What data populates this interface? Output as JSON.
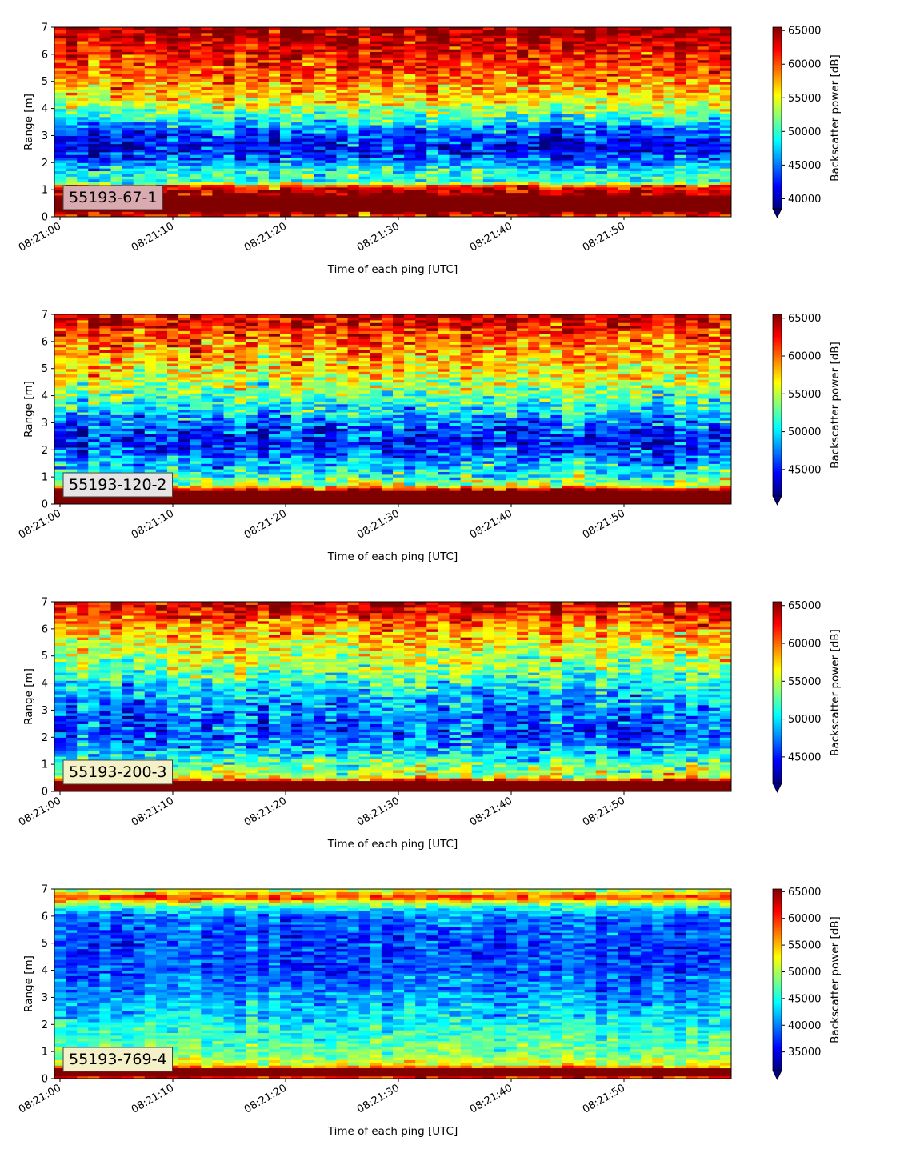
{
  "chart_data": [
    {
      "type": "heatmap",
      "label": "55193-67-1",
      "label_bg": "#d9aab0",
      "xlabel": "Time of each ping [UTC]",
      "ylabel": "Range [m]",
      "x_ticks": [
        "08:21:00",
        "08:21:10",
        "08:21:20",
        "08:21:30",
        "08:21:40",
        "08:21:50"
      ],
      "x_range_seconds": [
        -0.5,
        59.5
      ],
      "ylim": [
        0,
        7
      ],
      "y_ticks": [
        0,
        1,
        2,
        3,
        4,
        5,
        6,
        7
      ],
      "colorbar": {
        "label": "Backscatter power [dB]",
        "vmin": 38500,
        "vmax": 65500,
        "ticks": [
          40000,
          45000,
          50000,
          55000,
          60000,
          65000
        ],
        "extend": "min"
      },
      "profile": [
        [
          0,
          60500
        ],
        [
          0.2,
          66000
        ],
        [
          0.6,
          66000
        ],
        [
          0.95,
          64000
        ],
        [
          1.15,
          60000
        ],
        [
          1.3,
          49000
        ],
        [
          1.6,
          50500
        ],
        [
          2.0,
          45500
        ],
        [
          2.6,
          41500
        ],
        [
          3.2,
          44500
        ],
        [
          3.7,
          50000
        ],
        [
          4.2,
          55000
        ],
        [
          5.0,
          58500
        ],
        [
          6.0,
          62000
        ],
        [
          7.0,
          65000
        ]
      ],
      "noise": 4500
    },
    {
      "type": "heatmap",
      "label": "55193-120-2",
      "label_bg": "#e6e4e4",
      "xlabel": "Time of each ping [UTC]",
      "ylabel": "Range [m]",
      "x_ticks": [
        "08:21:00",
        "08:21:10",
        "08:21:20",
        "08:21:30",
        "08:21:40",
        "08:21:50"
      ],
      "x_range_seconds": [
        -0.5,
        59.5
      ],
      "ylim": [
        0,
        7
      ],
      "y_ticks": [
        0,
        1,
        2,
        3,
        4,
        5,
        6,
        7
      ],
      "colorbar": {
        "label": "Backscatter power [dB]",
        "vmin": 41500,
        "vmax": 65500,
        "ticks": [
          45000,
          50000,
          55000,
          60000,
          65000
        ],
        "extend": "min"
      },
      "profile": [
        [
          0,
          65500
        ],
        [
          0.5,
          65500
        ],
        [
          0.7,
          56000
        ],
        [
          1.0,
          51500
        ],
        [
          1.6,
          48500
        ],
        [
          2.2,
          45000
        ],
        [
          2.8,
          46000
        ],
        [
          3.5,
          50500
        ],
        [
          4.2,
          54000
        ],
        [
          5.0,
          57000
        ],
        [
          6.0,
          60000
        ],
        [
          7.0,
          64000
        ]
      ],
      "noise": 4500
    },
    {
      "type": "heatmap",
      "label": "55193-200-3",
      "label_bg": "#f4f0c8",
      "xlabel": "Time of each ping [UTC]",
      "ylabel": "Range [m]",
      "x_ticks": [
        "08:21:00",
        "08:21:10",
        "08:21:20",
        "08:21:30",
        "08:21:40",
        "08:21:50"
      ],
      "x_range_seconds": [
        -0.5,
        59.5
      ],
      "ylim": [
        0,
        7
      ],
      "y_ticks": [
        0,
        1,
        2,
        3,
        4,
        5,
        6,
        7
      ],
      "colorbar": {
        "label": "Backscatter power [dB]",
        "vmin": 41500,
        "vmax": 65500,
        "ticks": [
          45000,
          50000,
          55000,
          60000,
          65000
        ],
        "extend": "min"
      },
      "profile": [
        [
          0,
          65500
        ],
        [
          0.35,
          65500
        ],
        [
          0.55,
          55500
        ],
        [
          1.0,
          52500
        ],
        [
          1.6,
          48500
        ],
        [
          2.3,
          46000
        ],
        [
          3.0,
          47500
        ],
        [
          3.8,
          50000
        ],
        [
          4.5,
          53500
        ],
        [
          5.5,
          56500
        ],
        [
          6.3,
          60000
        ],
        [
          7.0,
          64500
        ]
      ],
      "noise": 4200
    },
    {
      "type": "heatmap",
      "label": "55193-769-4",
      "label_bg": "#f4f0c8",
      "xlabel": "Time of each ping [UTC]",
      "ylabel": "Range [m]",
      "x_ticks": [
        "08:21:00",
        "08:21:10",
        "08:21:20",
        "08:21:30",
        "08:21:40",
        "08:21:50"
      ],
      "x_range_seconds": [
        -0.5,
        59.5
      ],
      "ylim": [
        0,
        7
      ],
      "y_ticks": [
        0,
        1,
        2,
        3,
        4,
        5,
        6,
        7
      ],
      "colorbar": {
        "label": "Backscatter power [dB]",
        "vmin": 31500,
        "vmax": 65500,
        "ticks": [
          35000,
          40000,
          45000,
          50000,
          55000,
          60000,
          65000
        ],
        "extend": "min"
      },
      "profile": [
        [
          0,
          56000
        ],
        [
          0.1,
          66000
        ],
        [
          0.35,
          66000
        ],
        [
          0.5,
          52000
        ],
        [
          1.0,
          48000
        ],
        [
          1.5,
          46500
        ],
        [
          2.2,
          44000
        ],
        [
          3.0,
          41000
        ],
        [
          4.0,
          38500
        ],
        [
          5.0,
          38000
        ],
        [
          6.0,
          39500
        ],
        [
          6.4,
          46000
        ],
        [
          6.7,
          60000
        ],
        [
          6.9,
          54000
        ],
        [
          7.0,
          48000
        ]
      ],
      "noise": 4000
    }
  ]
}
